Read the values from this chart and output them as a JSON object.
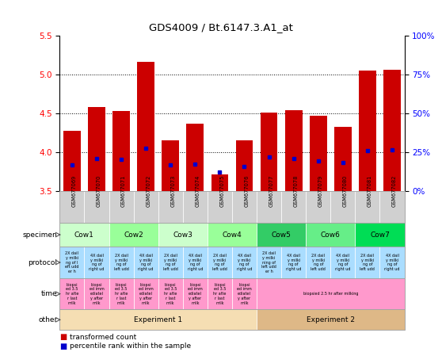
{
  "title": "GDS4009 / Bt.6147.3.A1_at",
  "samples": [
    "GSM677069",
    "GSM677070",
    "GSM677071",
    "GSM677072",
    "GSM677073",
    "GSM677074",
    "GSM677075",
    "GSM677076",
    "GSM677077",
    "GSM677078",
    "GSM677079",
    "GSM677080",
    "GSM677081",
    "GSM677082"
  ],
  "bar_values": [
    4.28,
    4.59,
    4.53,
    5.17,
    4.16,
    4.37,
    3.72,
    4.16,
    4.51,
    4.54,
    4.47,
    4.33,
    5.05,
    5.06
  ],
  "percentile_values": [
    3.84,
    3.92,
    3.91,
    4.05,
    3.84,
    3.85,
    3.75,
    3.82,
    3.94,
    3.92,
    3.89,
    3.87,
    4.02,
    4.03
  ],
  "bar_color": "#cc0000",
  "pct_color": "#0000cc",
  "ylim_left": [
    3.5,
    5.5
  ],
  "ylim_right": [
    0,
    100
  ],
  "right_ticks": [
    0,
    25,
    50,
    75,
    100
  ],
  "right_tick_labels": [
    "0%",
    "25%",
    "50%",
    "75%",
    "100%"
  ],
  "left_ticks": [
    3.5,
    4.0,
    4.5,
    5.0,
    5.5
  ],
  "dotted_lines": [
    4.0,
    4.5,
    5.0
  ],
  "specimen_groups": [
    {
      "text": "Cow1",
      "start": 0,
      "end": 2,
      "color": "#ccffcc"
    },
    {
      "text": "Cow2",
      "start": 2,
      "end": 4,
      "color": "#99ff99"
    },
    {
      "text": "Cow3",
      "start": 4,
      "end": 6,
      "color": "#ccffcc"
    },
    {
      "text": "Cow4",
      "start": 6,
      "end": 8,
      "color": "#99ff99"
    },
    {
      "text": "Cow5",
      "start": 8,
      "end": 10,
      "color": "#33cc66"
    },
    {
      "text": "Cow6",
      "start": 10,
      "end": 12,
      "color": "#66ee88"
    },
    {
      "text": "Cow7",
      "start": 12,
      "end": 14,
      "color": "#00dd55"
    }
  ],
  "protocol_color": "#aaddff",
  "protocol_texts": [
    "2X dail\ny milki\nng of l\neft udd\ner h",
    "4X dail\ny milki\nng of\nright ud",
    "2X dail\ny milki\nng of\nleft udd",
    "4X dail\ny milki\nng of\nright ud",
    "2X dail\ny milki\nng of\nleft udd",
    "4X dail\ny milki\nng of\nright ud",
    "2X dail\ny milki\nng of\nleft udd",
    "4X dail\ny milki\nng of\nright ud",
    "2X dail\ny milki\nning of\nleft udd\ner h",
    "4X dail\ny milki\nng of\nright ud",
    "2X dail\ny milki\nng of\nleft udd",
    "4X dail\ny milki\nng of\nright ud",
    "2X dail\ny milki\nng of\nleft udd",
    "4X dail\ny milki\nng of\nright ud"
  ],
  "time_color": "#ff99cc",
  "time_texts_exp1": [
    "biopsi\ned 3.5\nhr afte\nr last\nmilk",
    "biopsi\ned imm\nediatel\ny after\nmilk",
    "biopsi\ned 3.5\nhr afte\nr last\nmilk",
    "biopsi\ned imm\nediatel\ny after\nmilk",
    "biopsi\ned 3.5\nhr afte\nr last\nmilk",
    "biopsi\ned imm\nediatel\ny after\nmilk",
    "biopsi\ned 3.5\nhr afte\nr last\nmilk",
    "biopsi\ned imm\nediatel\ny after\nmilk"
  ],
  "time_text_exp2": "biopsied 2.5 hr after milking",
  "other_groups": [
    {
      "text": "Experiment 1",
      "start": 0,
      "end": 8,
      "color": "#f5deb3"
    },
    {
      "text": "Experiment 2",
      "start": 8,
      "end": 14,
      "color": "#deb887"
    }
  ],
  "row_labels": [
    "specimen",
    "protocol",
    "time",
    "other"
  ],
  "legend_items": [
    {
      "label": "transformed count",
      "color": "#cc0000"
    },
    {
      "label": "percentile rank within the sample",
      "color": "#0000cc"
    }
  ],
  "bar_width": 0.7,
  "sample_bg_color": "#d0d0d0",
  "tick_label_color": "#555555"
}
